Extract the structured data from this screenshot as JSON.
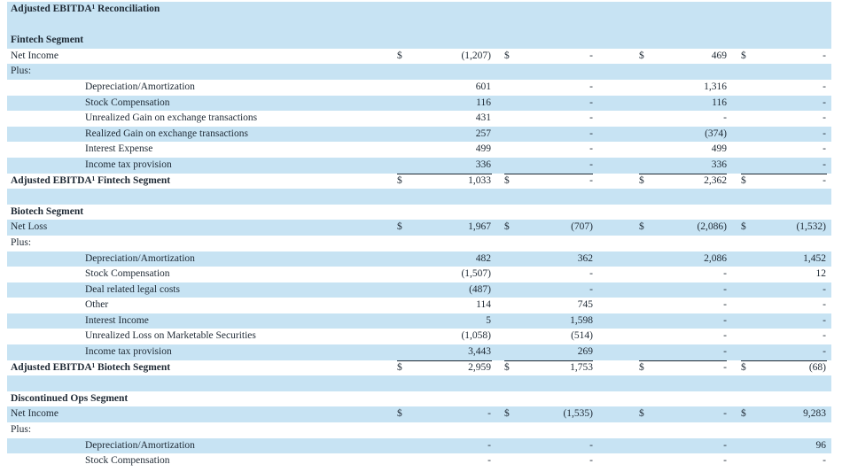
{
  "title": "Adjusted EBITDA¹ Reconciliation",
  "rows": [
    {
      "label": "",
      "style": "blank",
      "shaded": true,
      "indent": false,
      "top_rule": false,
      "c1s": "",
      "c1": "",
      "c2s": "",
      "c2": "",
      "c3s": "",
      "c3": "",
      "c4s": "",
      "c4": ""
    },
    {
      "label": "Fintech Segment",
      "style": "section",
      "shaded": true,
      "indent": false,
      "top_rule": false,
      "c1s": "",
      "c1": "",
      "c2s": "",
      "c2": "",
      "c3s": "",
      "c3": "",
      "c4s": "",
      "c4": ""
    },
    {
      "label": "Net Income",
      "style": "normal",
      "shaded": false,
      "indent": false,
      "top_rule": false,
      "c1s": "$",
      "c1": "(1,207)",
      "c2s": "$",
      "c2": "-",
      "c3s": "$",
      "c3": "469",
      "c4s": "$",
      "c4": "-"
    },
    {
      "label": "Plus:",
      "style": "normal",
      "shaded": true,
      "indent": false,
      "top_rule": false,
      "c1s": "",
      "c1": "",
      "c2s": "",
      "c2": "",
      "c3s": "",
      "c3": "",
      "c4s": "",
      "c4": ""
    },
    {
      "label": "Depreciation/Amortization",
      "style": "normal",
      "shaded": false,
      "indent": true,
      "top_rule": false,
      "c1s": "",
      "c1": "601",
      "c2s": "",
      "c2": "-",
      "c3s": "",
      "c3": "1,316",
      "c4s": "",
      "c4": "-"
    },
    {
      "label": "Stock Compensation",
      "style": "normal",
      "shaded": true,
      "indent": true,
      "top_rule": false,
      "c1s": "",
      "c1": "116",
      "c2s": "",
      "c2": "-",
      "c3s": "",
      "c3": "116",
      "c4s": "",
      "c4": "-"
    },
    {
      "label": "Unrealized Gain on exchange transactions",
      "style": "normal",
      "shaded": false,
      "indent": true,
      "top_rule": false,
      "c1s": "",
      "c1": "431",
      "c2s": "",
      "c2": "-",
      "c3s": "",
      "c3": "-",
      "c4s": "",
      "c4": "-"
    },
    {
      "label": "Realized Gain on exchange transactions",
      "style": "normal",
      "shaded": true,
      "indent": true,
      "top_rule": false,
      "c1s": "",
      "c1": "257",
      "c2s": "",
      "c2": "-",
      "c3s": "",
      "c3": "(374)",
      "c4s": "",
      "c4": "-"
    },
    {
      "label": "Interest Expense",
      "style": "normal",
      "shaded": false,
      "indent": true,
      "top_rule": false,
      "c1s": "",
      "c1": "499",
      "c2s": "",
      "c2": "-",
      "c3s": "",
      "c3": "499",
      "c4s": "",
      "c4": "-"
    },
    {
      "label": "Income tax provision",
      "style": "normal",
      "shaded": true,
      "indent": true,
      "top_rule": false,
      "c1s": "",
      "c1": "336",
      "c2s": "",
      "c2": "-",
      "c3s": "",
      "c3": "336",
      "c4s": "",
      "c4": "-"
    },
    {
      "label": "Adjusted EBITDA¹ Fintech Segment",
      "style": "bold",
      "shaded": false,
      "indent": false,
      "top_rule": true,
      "c1s": "$",
      "c1": "1,033",
      "c2s": "$",
      "c2": "-",
      "c3s": "$",
      "c3": "2,362",
      "c4s": "$",
      "c4": "-"
    },
    {
      "label": "",
      "style": "blank",
      "shaded": true,
      "indent": false,
      "top_rule": false,
      "c1s": "",
      "c1": "",
      "c2s": "",
      "c2": "",
      "c3s": "",
      "c3": "",
      "c4s": "",
      "c4": ""
    },
    {
      "label": "Biotech Segment",
      "style": "section",
      "shaded": false,
      "indent": false,
      "top_rule": false,
      "c1s": "",
      "c1": "",
      "c2s": "",
      "c2": "",
      "c3s": "",
      "c3": "",
      "c4s": "",
      "c4": ""
    },
    {
      "label": "Net Loss",
      "style": "normal",
      "shaded": true,
      "indent": false,
      "top_rule": false,
      "c1s": "$",
      "c1": "1,967",
      "c2s": "$",
      "c2": "(707)",
      "c3s": "$",
      "c3": "(2,086)",
      "c4s": "$",
      "c4": "(1,532)"
    },
    {
      "label": "Plus:",
      "style": "normal",
      "shaded": false,
      "indent": false,
      "top_rule": false,
      "c1s": "",
      "c1": "",
      "c2s": "",
      "c2": "",
      "c3s": "",
      "c3": "",
      "c4s": "",
      "c4": ""
    },
    {
      "label": "Depreciation/Amortization",
      "style": "normal",
      "shaded": true,
      "indent": true,
      "top_rule": false,
      "c1s": "",
      "c1": "482",
      "c2s": "",
      "c2": "362",
      "c3s": "",
      "c3": "2,086",
      "c4s": "",
      "c4": "1,452"
    },
    {
      "label": "Stock Compensation",
      "style": "normal",
      "shaded": false,
      "indent": true,
      "top_rule": false,
      "c1s": "",
      "c1": "(1,507)",
      "c2s": "",
      "c2": "-",
      "c3s": "",
      "c3": "-",
      "c4s": "",
      "c4": "12"
    },
    {
      "label": "Deal related legal costs",
      "style": "normal",
      "shaded": true,
      "indent": true,
      "top_rule": false,
      "c1s": "",
      "c1": "(487)",
      "c2s": "",
      "c2": "-",
      "c3s": "",
      "c3": "-",
      "c4s": "",
      "c4": "-"
    },
    {
      "label": "Other",
      "style": "normal",
      "shaded": false,
      "indent": true,
      "top_rule": false,
      "c1s": "",
      "c1": "114",
      "c2s": "",
      "c2": "745",
      "c3s": "",
      "c3": "-",
      "c4s": "",
      "c4": "-"
    },
    {
      "label": "Interest Income",
      "style": "normal",
      "shaded": true,
      "indent": true,
      "top_rule": false,
      "c1s": "",
      "c1": "5",
      "c2s": "",
      "c2": "1,598",
      "c3s": "",
      "c3": "-",
      "c4s": "",
      "c4": "-"
    },
    {
      "label": "Unrealized Loss on Marketable Securities",
      "style": "normal",
      "shaded": false,
      "indent": true,
      "top_rule": false,
      "c1s": "",
      "c1": "(1,058)",
      "c2s": "",
      "c2": "(514)",
      "c3s": "",
      "c3": "-",
      "c4s": "",
      "c4": "-"
    },
    {
      "label": "Income tax provision",
      "style": "normal",
      "shaded": true,
      "indent": true,
      "top_rule": false,
      "c1s": "",
      "c1": "3,443",
      "c2s": "",
      "c2": "269",
      "c3s": "",
      "c3": "-",
      "c4s": "",
      "c4": "-"
    },
    {
      "label": "Adjusted EBITDA¹ Biotech Segment",
      "style": "bold",
      "shaded": false,
      "indent": false,
      "top_rule": true,
      "c1s": "$",
      "c1": "2,959",
      "c2s": "$",
      "c2": "1,753",
      "c3s": "$",
      "c3": "-",
      "c4s": "$",
      "c4": "(68)"
    },
    {
      "label": "",
      "style": "blank",
      "shaded": true,
      "indent": false,
      "top_rule": false,
      "c1s": "",
      "c1": "",
      "c2s": "",
      "c2": "",
      "c3s": "",
      "c3": "",
      "c4s": "",
      "c4": ""
    },
    {
      "label": "Discontinued Ops Segment",
      "style": "section",
      "shaded": false,
      "indent": false,
      "top_rule": false,
      "c1s": "",
      "c1": "",
      "c2s": "",
      "c2": "",
      "c3s": "",
      "c3": "",
      "c4s": "",
      "c4": ""
    },
    {
      "label": "Net Income",
      "style": "normal",
      "shaded": true,
      "indent": false,
      "top_rule": false,
      "c1s": "$",
      "c1": "-",
      "c2s": "$",
      "c2": "(1,535)",
      "c3s": "$",
      "c3": "-",
      "c4s": "$",
      "c4": "9,283"
    },
    {
      "label": "Plus:",
      "style": "normal",
      "shaded": false,
      "indent": false,
      "top_rule": false,
      "c1s": "",
      "c1": "",
      "c2s": "",
      "c2": "",
      "c3s": "",
      "c3": "",
      "c4s": "",
      "c4": ""
    },
    {
      "label": "Depreciation/Amortization",
      "style": "normal",
      "shaded": true,
      "indent": true,
      "top_rule": false,
      "c1s": "",
      "c1": "-",
      "c2s": "",
      "c2": "-",
      "c3s": "",
      "c3": "-",
      "c4s": "",
      "c4": "96"
    },
    {
      "label": "Stock Compensation",
      "style": "normal",
      "shaded": false,
      "indent": true,
      "top_rule": false,
      "c1s": "",
      "c1": "-",
      "c2s": "",
      "c2": "-",
      "c3s": "",
      "c3": "-",
      "c4s": "",
      "c4": "-"
    }
  ]
}
